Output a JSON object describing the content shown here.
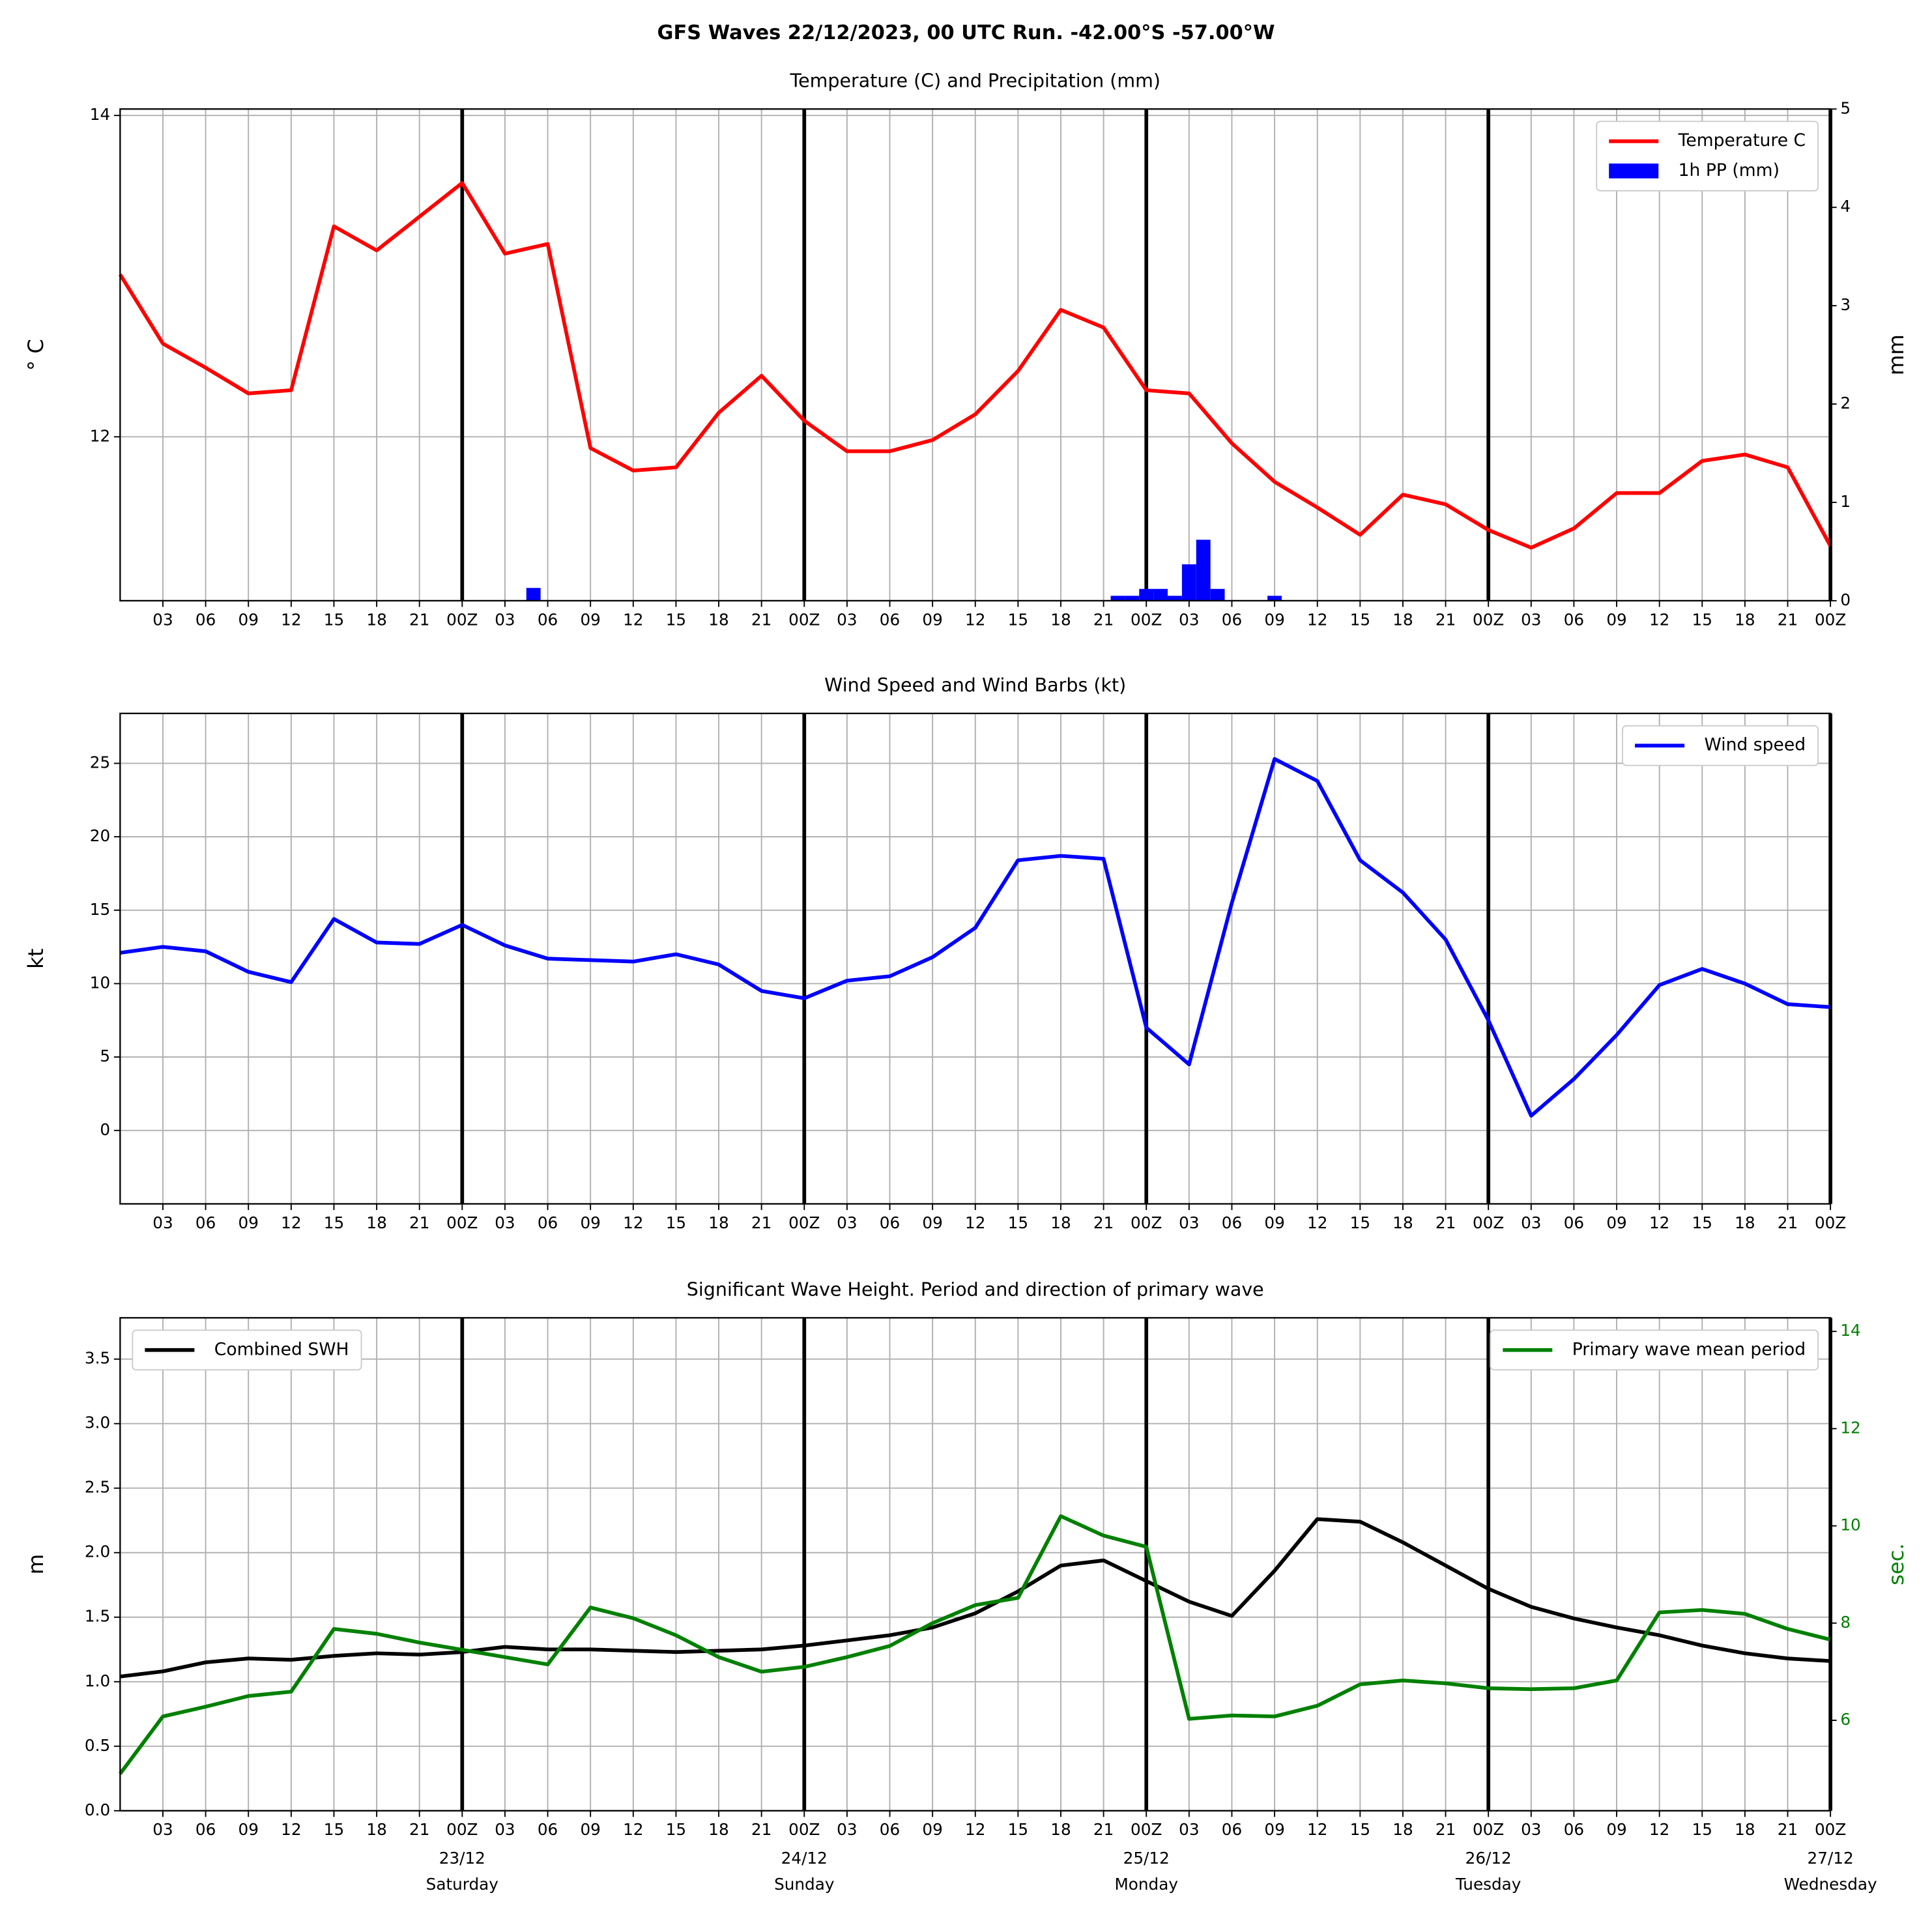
{
  "title": "GFS Waves 22/12/2023, 00 UTC Run. -42.00°S -57.00°W",
  "chart_data": [
    {
      "type": "line",
      "title": "Temperature (C) and Precipitation (mm)",
      "ylabel": "° C",
      "y2label": "mm",
      "x": [
        0,
        3,
        6,
        9,
        12,
        15,
        18,
        21,
        24,
        27,
        30,
        33,
        36,
        39,
        42,
        45,
        48,
        51,
        54,
        57,
        60,
        63,
        66,
        69,
        72,
        75,
        78,
        81,
        84,
        87,
        90,
        93,
        96,
        99,
        102,
        105,
        108,
        111,
        114,
        117,
        120
      ],
      "xlim": [
        0,
        120
      ],
      "xticks": [
        {
          "value": 3,
          "label": "03"
        },
        {
          "value": 6,
          "label": "06"
        },
        {
          "value": 9,
          "label": "09"
        },
        12,
        15,
        18,
        21,
        {
          "value": 24,
          "label": "00Z"
        },
        {
          "value": 27,
          "label": "03"
        },
        {
          "value": 30,
          "label": "06"
        },
        {
          "value": 33,
          "label": "09"
        },
        {
          "value": 36,
          "label": "12"
        },
        {
          "value": 39,
          "label": "15"
        },
        {
          "value": 42,
          "label": "18"
        },
        {
          "value": 45,
          "label": "21"
        },
        {
          "value": 48,
          "label": "00Z"
        },
        {
          "value": 51,
          "label": "03"
        },
        {
          "value": 54,
          "label": "06"
        },
        {
          "value": 57,
          "label": "09"
        },
        {
          "value": 60,
          "label": "12"
        },
        {
          "value": 63,
          "label": "15"
        },
        {
          "value": 66,
          "label": "18"
        },
        {
          "value": 69,
          "label": "21"
        },
        {
          "value": 72,
          "label": "00Z"
        },
        {
          "value": 75,
          "label": "03"
        },
        {
          "value": 78,
          "label": "06"
        },
        {
          "value": 81,
          "label": "09"
        },
        {
          "value": 84,
          "label": "12"
        },
        {
          "value": 87,
          "label": "15"
        },
        {
          "value": 90,
          "label": "18"
        },
        {
          "value": 93,
          "label": "21"
        },
        {
          "value": 96,
          "label": "00Z"
        },
        {
          "value": 99,
          "label": "03"
        },
        {
          "value": 102,
          "label": "06"
        },
        {
          "value": 105,
          "label": "09"
        },
        {
          "value": 108,
          "label": "12"
        },
        {
          "value": 111,
          "label": "15"
        },
        {
          "value": 114,
          "label": "18"
        },
        {
          "value": 117,
          "label": "21"
        },
        {
          "value": 120,
          "label": "00Z"
        }
      ],
      "ylim": [
        10.98,
        14.04
      ],
      "yticks": [
        12,
        14
      ],
      "y2lim": [
        0,
        5
      ],
      "y2ticks": [
        0,
        1,
        2,
        3,
        4,
        5
      ],
      "grid": true,
      "legend": "upper right",
      "series": [
        {
          "name": "Temperature C",
          "type": "line",
          "color": "#ff0000",
          "values": [
            13.01,
            12.58,
            12.43,
            12.27,
            12.29,
            13.31,
            13.16,
            13.37,
            13.58,
            13.14,
            13.2,
            11.93,
            11.79,
            11.81,
            12.15,
            12.38,
            12.1,
            11.91,
            11.91,
            11.98,
            12.14,
            12.41,
            12.79,
            12.68,
            12.29,
            12.27,
            11.96,
            11.72,
            11.56,
            11.39,
            11.64,
            11.58,
            11.42,
            11.31,
            11.43,
            11.65,
            11.65,
            11.85,
            11.89,
            11.81,
            11.32
          ]
        },
        {
          "name": "1h PP (mm)",
          "type": "bar",
          "color": "#0000ff",
          "axis": "y2",
          "x": [
            29,
            70,
            71,
            72,
            73,
            74,
            75,
            76,
            77,
            81
          ],
          "values": [
            0.13,
            0.05,
            0.05,
            0.12,
            0.12,
            0.05,
            0.37,
            0.62,
            0.12,
            0.05
          ]
        }
      ]
    },
    {
      "type": "line",
      "title": "Wind Speed and Wind Barbs (kt)",
      "ylabel": "kt",
      "x": [
        0,
        3,
        6,
        9,
        12,
        15,
        18,
        21,
        24,
        27,
        30,
        33,
        36,
        39,
        42,
        45,
        48,
        51,
        54,
        57,
        60,
        63,
        66,
        69,
        72,
        75,
        78,
        81,
        84,
        87,
        90,
        93,
        96,
        99,
        102,
        105,
        108,
        111,
        114,
        117,
        120
      ],
      "xlim": [
        0,
        120
      ],
      "xticks": [
        {
          "value": 3,
          "label": "03"
        },
        {
          "value": 6,
          "label": "06"
        },
        {
          "value": 9,
          "label": "09"
        },
        12,
        15,
        18,
        21,
        {
          "value": 24,
          "label": "00Z"
        },
        {
          "value": 27,
          "label": "03"
        },
        {
          "value": 30,
          "label": "06"
        },
        {
          "value": 33,
          "label": "09"
        },
        {
          "value": 36,
          "label": "12"
        },
        {
          "value": 39,
          "label": "15"
        },
        {
          "value": 42,
          "label": "18"
        },
        {
          "value": 45,
          "label": "21"
        },
        {
          "value": 48,
          "label": "00Z"
        },
        {
          "value": 51,
          "label": "03"
        },
        {
          "value": 54,
          "label": "06"
        },
        {
          "value": 57,
          "label": "09"
        },
        {
          "value": 60,
          "label": "12"
        },
        {
          "value": 63,
          "label": "15"
        },
        {
          "value": 66,
          "label": "18"
        },
        {
          "value": 69,
          "label": "21"
        },
        {
          "value": 72,
          "label": "00Z"
        },
        {
          "value": 75,
          "label": "03"
        },
        {
          "value": 78,
          "label": "06"
        },
        {
          "value": 81,
          "label": "09"
        },
        {
          "value": 84,
          "label": "12"
        },
        {
          "value": 87,
          "label": "15"
        },
        {
          "value": 90,
          "label": "18"
        },
        {
          "value": 93,
          "label": "21"
        },
        {
          "value": 96,
          "label": "00Z"
        },
        {
          "value": 99,
          "label": "03"
        },
        {
          "value": 102,
          "label": "06"
        },
        {
          "value": 105,
          "label": "09"
        },
        {
          "value": 108,
          "label": "12"
        },
        {
          "value": 111,
          "label": "15"
        },
        {
          "value": 114,
          "label": "18"
        },
        {
          "value": 117,
          "label": "21"
        },
        {
          "value": 120,
          "label": "00Z"
        }
      ],
      "ylim": [
        -5,
        28.4
      ],
      "yticks": [
        0,
        5,
        10,
        15,
        20,
        25
      ],
      "grid": true,
      "legend": "upper right",
      "series": [
        {
          "name": "Wind speed",
          "type": "line",
          "color": "#0000ff",
          "values": [
            12.1,
            12.5,
            12.2,
            10.8,
            10.1,
            14.4,
            12.8,
            12.7,
            14.0,
            12.6,
            11.7,
            11.6,
            11.5,
            12.0,
            11.3,
            9.5,
            9.0,
            10.2,
            10.5,
            11.8,
            13.8,
            18.4,
            18.7,
            18.5,
            7.0,
            4.5,
            15.5,
            25.3,
            23.8,
            18.4,
            16.2,
            13.0,
            7.5,
            1.0,
            3.5,
            6.5,
            9.9,
            11.0,
            10.0,
            8.6,
            8.4
          ]
        }
      ]
    },
    {
      "type": "line",
      "title": "Significant Wave Height. Period and direction of primary wave",
      "ylabel": "m",
      "y2label": "sec.",
      "y2_color": "#008000",
      "x": [
        0,
        3,
        6,
        9,
        12,
        15,
        18,
        21,
        24,
        27,
        30,
        33,
        36,
        39,
        42,
        45,
        48,
        51,
        54,
        57,
        60,
        63,
        66,
        69,
        72,
        75,
        78,
        81,
        84,
        87,
        90,
        93,
        96,
        99,
        102,
        105,
        108,
        111,
        114,
        117,
        120
      ],
      "xlim": [
        0,
        120
      ],
      "xticks": [
        {
          "value": 3,
          "label": "03"
        },
        {
          "value": 6,
          "label": "06"
        },
        {
          "value": 9,
          "label": "09"
        },
        12,
        15,
        18,
        21,
        {
          "value": 24,
          "label": "00Z"
        },
        {
          "value": 27,
          "label": "03"
        },
        {
          "value": 30,
          "label": "06"
        },
        {
          "value": 33,
          "label": "09"
        },
        {
          "value": 36,
          "label": "12"
        },
        {
          "value": 39,
          "label": "15"
        },
        {
          "value": 42,
          "label": "18"
        },
        {
          "value": 45,
          "label": "21"
        },
        {
          "value": 48,
          "label": "00Z"
        },
        {
          "value": 51,
          "label": "03"
        },
        {
          "value": 54,
          "label": "06"
        },
        {
          "value": 57,
          "label": "09"
        },
        {
          "value": 60,
          "label": "12"
        },
        {
          "value": 63,
          "label": "15"
        },
        {
          "value": 66,
          "label": "18"
        },
        {
          "value": 69,
          "label": "21"
        },
        {
          "value": 72,
          "label": "00Z"
        },
        {
          "value": 75,
          "label": "03"
        },
        {
          "value": 78,
          "label": "06"
        },
        {
          "value": 81,
          "label": "09"
        },
        {
          "value": 84,
          "label": "12"
        },
        {
          "value": 87,
          "label": "15"
        },
        {
          "value": 90,
          "label": "18"
        },
        {
          "value": 93,
          "label": "21"
        },
        {
          "value": 96,
          "label": "00Z"
        },
        {
          "value": 99,
          "label": "03"
        },
        {
          "value": 102,
          "label": "06"
        },
        {
          "value": 105,
          "label": "09"
        },
        {
          "value": 108,
          "label": "12"
        },
        {
          "value": 111,
          "label": "15"
        },
        {
          "value": 114,
          "label": "18"
        },
        {
          "value": 117,
          "label": "21"
        },
        {
          "value": 120,
          "label": "00Z"
        }
      ],
      "date_labels": [
        {
          "value": 24,
          "date": "23/12",
          "day": "Saturday"
        },
        {
          "value": 48,
          "date": "24/12",
          "day": "Sunday"
        },
        {
          "value": 72,
          "date": "25/12",
          "day": "Monday"
        },
        {
          "value": 96,
          "date": "26/12",
          "day": "Tuesday"
        },
        {
          "value": 120,
          "date": "27/12",
          "day": "Wednesday"
        }
      ],
      "ylim": [
        0,
        3.82
      ],
      "yticks": [
        {
          "value": 0,
          "label": "0.0"
        },
        0.5,
        {
          "value": 1,
          "label": "1.0"
        },
        1.5,
        {
          "value": 2,
          "label": "2.0"
        },
        2.5,
        {
          "value": 3,
          "label": "3.0"
        },
        3.5
      ],
      "y2lim": [
        4.14,
        14.28
      ],
      "y2ticks": [
        6,
        8,
        10,
        12,
        14
      ],
      "grid": true,
      "series": [
        {
          "name": "Combined SWH",
          "type": "line",
          "color": "#000000",
          "legend": "upper left",
          "values": [
            1.04,
            1.08,
            1.15,
            1.18,
            1.17,
            1.2,
            1.22,
            1.21,
            1.23,
            1.27,
            1.25,
            1.25,
            1.24,
            1.23,
            1.24,
            1.25,
            1.28,
            1.32,
            1.36,
            1.42,
            1.53,
            1.7,
            1.9,
            1.94,
            1.78,
            1.62,
            1.51,
            1.86,
            2.26,
            2.24,
            2.08,
            1.9,
            1.72,
            1.58,
            1.49,
            1.42,
            1.36,
            1.28,
            1.22,
            1.18,
            1.16
          ]
        },
        {
          "name": "Primary wave mean period",
          "type": "line",
          "color": "#008000",
          "axis": "y2",
          "legend": "upper right",
          "values": [
            4.9,
            6.08,
            6.28,
            6.5,
            6.59,
            7.88,
            7.78,
            7.6,
            7.45,
            7.3,
            7.15,
            8.32,
            8.1,
            7.75,
            7.3,
            7.0,
            7.1,
            7.3,
            7.53,
            8.0,
            8.37,
            8.52,
            10.2,
            9.8,
            9.57,
            6.03,
            6.1,
            6.08,
            6.3,
            6.74,
            6.82,
            6.76,
            6.66,
            6.64,
            6.66,
            6.82,
            8.22,
            8.27,
            8.19,
            7.88,
            7.66
          ]
        }
      ]
    }
  ]
}
